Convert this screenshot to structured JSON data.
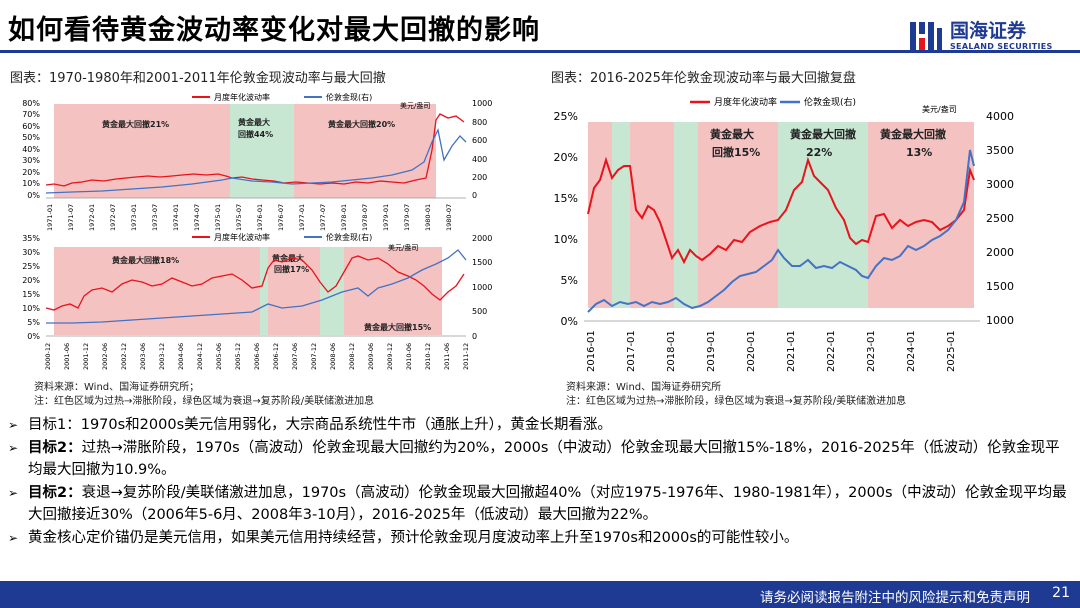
{
  "title": "如何看待黄金波动率变化对最大回撤的影响",
  "logo": {
    "cn": "国海证券",
    "en": "SEALAND SECURITIES"
  },
  "colors": {
    "brand": "#1f3a93",
    "vol": "#e8131b",
    "gold": "#4472c4",
    "overheat": "#f5c2c2",
    "recession": "#c7e7d3"
  },
  "captions": {
    "left": "图表：1970-1980年和2001-2011年伦敦金现波动率与最大回撤",
    "right": "图表：2016-2025年伦敦金现波动率与最大回撤复盘"
  },
  "charts": {
    "top": {
      "legend_vol": "月度年化波动率",
      "legend_gold": "伦敦金现(右)",
      "unit": "美元/盎司",
      "y_left": [
        "80%",
        "70%",
        "60%",
        "50%",
        "40%",
        "30%",
        "20%",
        "10%",
        "0%"
      ],
      "y_right": [
        "1000",
        "800",
        "600",
        "400",
        "200",
        "0"
      ],
      "x_ticks": [
        "1971-01",
        "1971-07",
        "1972-01",
        "1972-07",
        "1973-01",
        "1973-07",
        "1974-01",
        "1974-07",
        "1975-01",
        "1975-07",
        "1976-01",
        "1976-07",
        "1977-01",
        "1977-07",
        "1978-01",
        "1978-07",
        "1979-01",
        "1979-07",
        "1980-01",
        "1980-07"
      ],
      "regions": [
        {
          "label": "黄金最大回撤21%",
          "type": "overheat"
        },
        {
          "label": "黄金最大回撤44%",
          "type": "recession"
        },
        {
          "label": "黄金最大回撤20%",
          "type": "overheat"
        }
      ]
    },
    "bottom": {
      "legend_vol": "月度年化波动率",
      "legend_gold": "伦敦金现(右)",
      "unit": "美元/盎司",
      "y_left": [
        "35%",
        "30%",
        "25%",
        "20%",
        "15%",
        "10%",
        "5%",
        "0%"
      ],
      "y_right": [
        "2000",
        "1500",
        "1000",
        "500",
        "0"
      ],
      "x_ticks": [
        "2000-12",
        "2001-06",
        "2001-12",
        "2002-06",
        "2002-12",
        "2003-06",
        "2003-12",
        "2004-06",
        "2004-12",
        "2005-06",
        "2005-12",
        "2006-06",
        "2006-12",
        "2007-06",
        "2007-12",
        "2008-06",
        "2008-12",
        "2009-06",
        "2009-12",
        "2010-06",
        "2010-12",
        "2011-06",
        "2011-12"
      ],
      "regions": [
        {
          "label": "黄金最大回撤18%",
          "type": "overheat"
        },
        {
          "label": "黄金最大回撤17%",
          "type": "overheat"
        },
        {
          "label": "黄金最大回撤15%",
          "type": "overheat"
        }
      ]
    },
    "right": {
      "legend_vol": "月度年化波动率",
      "legend_gold": "伦敦金现(右)",
      "unit": "美元/盎司",
      "y_left": [
        "25%",
        "20%",
        "15%",
        "10%",
        "5%",
        "0%"
      ],
      "y_right": [
        "4000",
        "3500",
        "3000",
        "2500",
        "2000",
        "1500",
        "1000"
      ],
      "x_ticks": [
        "2016-01",
        "2017-01",
        "2018-01",
        "2019-01",
        "2020-01",
        "2021-01",
        "2022-01",
        "2023-01",
        "2024-01",
        "2025-01"
      ],
      "regions": [
        {
          "label": "黄金最大回撤15%",
          "type": "overheat"
        },
        {
          "label": "黄金最大回撤22%",
          "type": "recession"
        },
        {
          "label": "黄金最大回撤13%",
          "type": "overheat"
        }
      ]
    }
  },
  "notes": {
    "left_source": "资料来源：Wind、国海证券研究所；",
    "left_note": "注：红色区域为过热→滞胀阶段，绿色区域为衰退→复苏阶段/美联储激进加息",
    "right_source": "资料来源：Wind、国海证券研究所",
    "right_note": "注：红色区域为过热→滞胀阶段，绿色区域为衰退→复苏阶段/美联储激进加息"
  },
  "bullets": [
    {
      "text": "目标1：1970s和2000s美元信用弱化，大宗商品系统性牛市（通胀上升），黄金长期看涨。",
      "bold": true
    },
    {
      "prefix": "目标2：",
      "text": "过热→滞胀阶段，1970s（高波动）伦敦金现最大回撤约为20%，2000s（中波动）伦敦金现最大回撤15%-18%，2016-2025年（低波动）伦敦金现平均最大回撤为10.9%。",
      "bold": false
    },
    {
      "prefix": "目标2：",
      "text": "衰退→复苏阶段/美联储激进加息，1970s（高波动）伦敦金现最大回撤超40%（对应1975-1976年、1980-1981年），2000s（中波动）伦敦金现平均最大回撤接近30%（2006年5-6月、2008年3-10月），2016-2025年（低波动）最大回撤为22%。",
      "bold": false
    },
    {
      "text": "黄金核心定价锚仍是美元信用，如果美元信用持续经营，预计伦敦金现月度波动率上升至1970s和2000s的可能性较小。",
      "bold": true
    }
  ],
  "footer": {
    "disclaimer": "请务必阅读报告附注中的风险提示和免责声明",
    "page": "21"
  }
}
